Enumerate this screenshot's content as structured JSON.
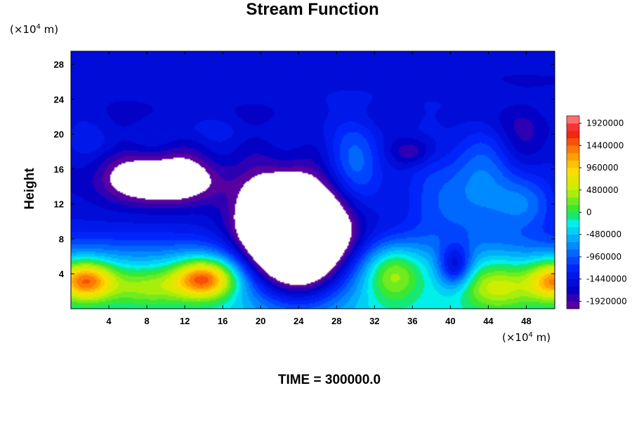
{
  "chart_data": {
    "type": "heatmap",
    "title": "Stream Function",
    "ylabel": "Height",
    "xlabel": "",
    "y_unit": {
      "prefix": "(×10",
      "exp": "4",
      "suffix": " m)"
    },
    "x_unit": {
      "prefix": "(×10",
      "exp": "4",
      "suffix": " m)"
    },
    "xlim": [
      0,
      51
    ],
    "ylim": [
      0,
      29.5
    ],
    "x_ticks": [
      "4",
      "8",
      "12",
      "16",
      "20",
      "24",
      "28",
      "32",
      "36",
      "40",
      "44",
      "48"
    ],
    "y_ticks": [
      "4",
      "8",
      "12",
      "16",
      "20",
      "24",
      "28"
    ],
    "colorbar": {
      "min": -2080000,
      "max": 2080000,
      "step": 160000,
      "labels": [
        "1920000",
        "1440000",
        "960000",
        "480000",
        "0",
        "-480000",
        "-960000",
        "-1440000",
        "-1920000"
      ]
    },
    "field_features": [
      {
        "kind": "max",
        "x": 1.5,
        "y": 3.2,
        "value": 1600000
      },
      {
        "kind": "max",
        "x": 14.0,
        "y": 3.5,
        "value": 1600000
      },
      {
        "kind": "max",
        "x": 50.5,
        "y": 3.2,
        "value": 1300000
      },
      {
        "kind": "max",
        "x": 34.0,
        "y": 4.0,
        "value": 0
      },
      {
        "kind": "min",
        "x": 24.0,
        "y": 8.0,
        "value": -2300000
      },
      {
        "kind": "min",
        "x": 9.5,
        "y": 14.8,
        "value": -2300000
      },
      {
        "kind": "min",
        "x": 40.5,
        "y": 4.5,
        "value": -1500000
      }
    ],
    "colors": {
      "over_range": "#ffffff",
      "background": "#ffffff"
    }
  },
  "footer": {
    "time_label": "TIME = 300000.0"
  }
}
